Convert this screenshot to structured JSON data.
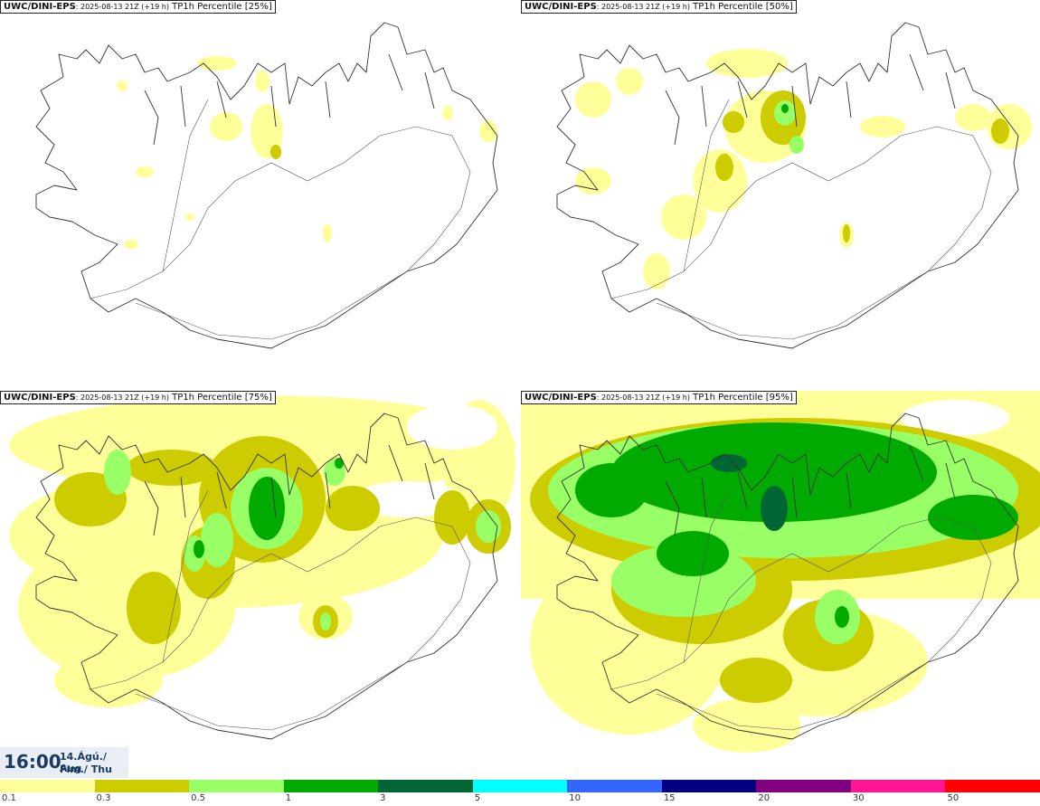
{
  "panels": [
    {
      "source": "UWC/DINI-EPS",
      "meta": ": 2025-08-13 21Z (+19 h)",
      "field": " TP1h Percentile [25%]"
    },
    {
      "source": "UWC/DINI-EPS",
      "meta": ": 2025-08-13 21Z (+19 h)",
      "field": " TP1h Percentile [50%]"
    },
    {
      "source": "UWC/DINI-EPS",
      "meta": ": 2025-08-13 21Z (+19 h)",
      "field": " TP1h Percentile [75%]"
    },
    {
      "source": "UWC/DINI-EPS",
      "meta": ": 2025-08-13 21Z (+19 h)",
      "field": " TP1h Percentile [95%]"
    }
  ],
  "valid_time": {
    "time": "16:00",
    "date": "14.Ágú./ Aug",
    "weekday": "Fim./ Thu"
  },
  "legend": {
    "levels": [
      "0.1",
      "0.3",
      "0.5",
      "1",
      "3",
      "5",
      "10",
      "15",
      "20",
      "30",
      "50"
    ],
    "colors": [
      "#ffff99",
      "#cccc00",
      "#99ff66",
      "#00aa00",
      "#006633",
      "#00ffff",
      "#3366ff",
      "#000080",
      "#800080",
      "#ff1493",
      "#ff0000"
    ]
  }
}
